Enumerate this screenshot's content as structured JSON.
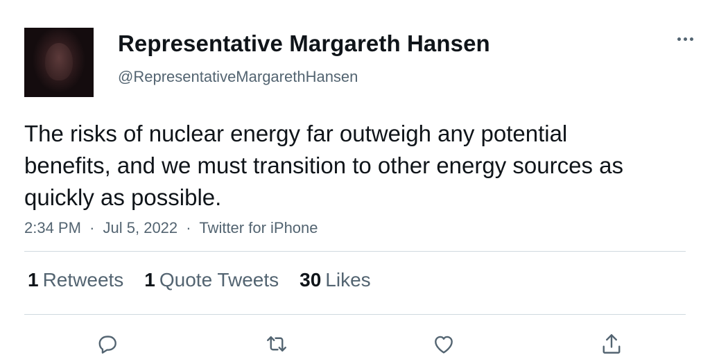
{
  "tweet": {
    "display_name": "Representative Margareth Hansen",
    "handle": "@RepresentativeMargarethHansen",
    "text": "The risks of nuclear energy far outweigh any potential benefits, and we must transition to other energy sources as quickly as possible.",
    "time": "2:34 PM",
    "date": "Jul 5, 2022",
    "source": "Twitter for iPhone",
    "separator": "·"
  },
  "stats": {
    "retweets_count": "1",
    "retweets_label": "Retweets",
    "quotes_count": "1",
    "quotes_label": "Quote Tweets",
    "likes_count": "30",
    "likes_label": "Likes"
  },
  "icons": {
    "more": "more-horizontal-icon",
    "reply": "reply-icon",
    "retweet": "retweet-icon",
    "like": "heart-icon",
    "share": "share-icon"
  },
  "colors": {
    "text_primary": "#0f1419",
    "text_secondary": "#536471",
    "divider": "#cfd9de"
  }
}
